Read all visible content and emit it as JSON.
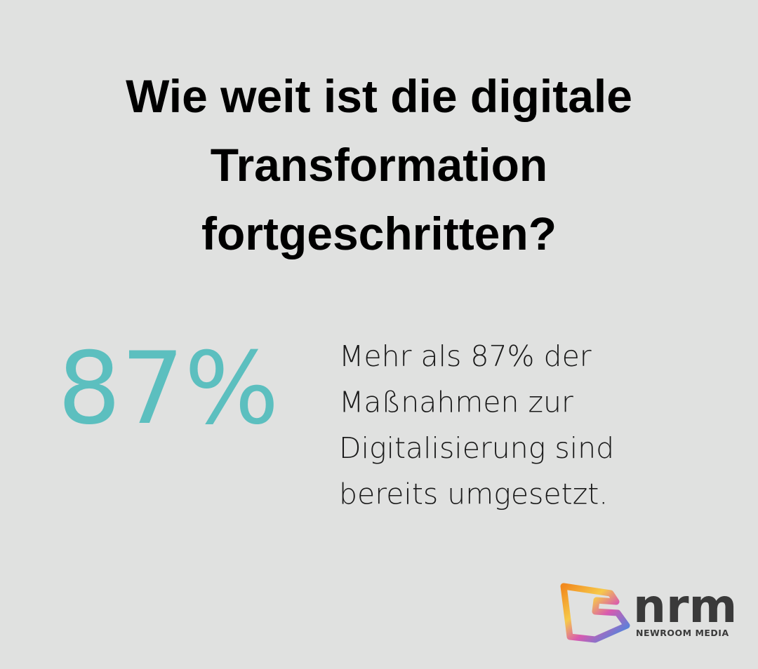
{
  "title_lines": [
    "Wie weit ist die digitale",
    "Transformation",
    "fortgeschritten?"
  ],
  "stat": "87%",
  "description_lines": [
    "Mehr als 87% der",
    "Maßnahmen zur",
    "Digitalisierung sind",
    "bereits umgesetzt."
  ],
  "logo": {
    "name": "nrm",
    "subtitle": "NEWROOM MEDIA"
  }
}
